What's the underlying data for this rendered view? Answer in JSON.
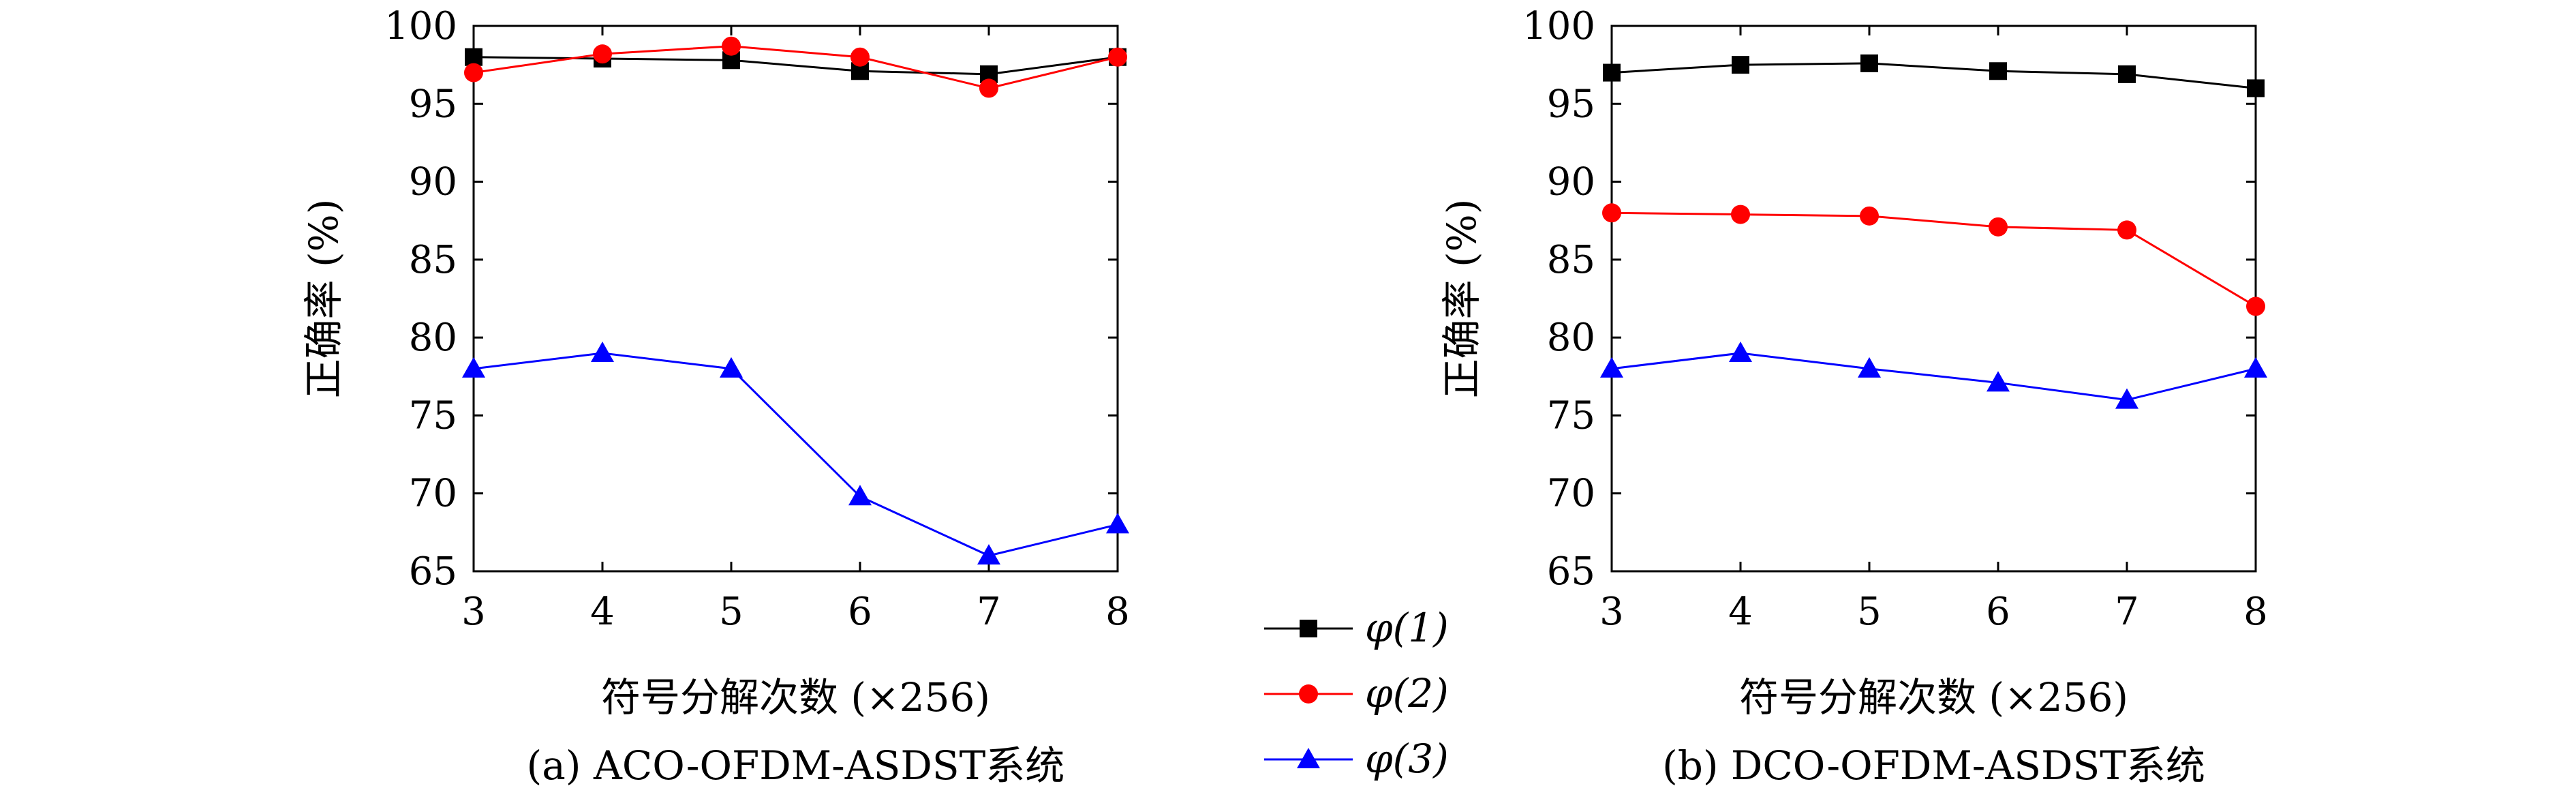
{
  "chart_data": [
    {
      "type": "line",
      "caption": "(a) ACO-OFDM-ASDST系统",
      "xlabel": "符号分解次数 (×256)",
      "ylabel": "正确率 (%)",
      "x": [
        3,
        4,
        5,
        6,
        7,
        8
      ],
      "xlim": [
        3,
        8
      ],
      "ylim": [
        65,
        100
      ],
      "xticks": [
        "3",
        "4",
        "5",
        "6",
        "7",
        "8"
      ],
      "yticks": [
        "65",
        "70",
        "75",
        "80",
        "85",
        "90",
        "95",
        "100"
      ],
      "grid": false,
      "series": [
        {
          "name": "φ(1)",
          "color": "#000000",
          "marker": "square",
          "values": [
            98.0,
            97.9,
            97.8,
            97.1,
            96.9,
            98.0
          ]
        },
        {
          "name": "φ(2)",
          "color": "#ff0000",
          "marker": "circle",
          "values": [
            97.0,
            98.2,
            98.7,
            98.0,
            96.0,
            98.0
          ]
        },
        {
          "name": "φ(3)",
          "color": "#0000ff",
          "marker": "triangle",
          "values": [
            78.0,
            79.0,
            78.0,
            69.8,
            66.0,
            68.0
          ]
        }
      ]
    },
    {
      "type": "line",
      "caption": "(b) DCO-OFDM-ASDST系统",
      "xlabel": "符号分解次数 (×256)",
      "ylabel": "正确率 (%)",
      "x": [
        3,
        4,
        5,
        6,
        7,
        8
      ],
      "xlim": [
        3,
        8
      ],
      "ylim": [
        65,
        100
      ],
      "xticks": [
        "3",
        "4",
        "5",
        "6",
        "7",
        "8"
      ],
      "yticks": [
        "65",
        "70",
        "75",
        "80",
        "85",
        "90",
        "95",
        "100"
      ],
      "grid": false,
      "series": [
        {
          "name": "φ(1)",
          "color": "#000000",
          "marker": "square",
          "values": [
            97.0,
            97.5,
            97.6,
            97.1,
            96.9,
            96.0
          ]
        },
        {
          "name": "φ(2)",
          "color": "#ff0000",
          "marker": "circle",
          "values": [
            88.0,
            87.9,
            87.8,
            87.1,
            86.9,
            82.0
          ]
        },
        {
          "name": "φ(3)",
          "color": "#0000ff",
          "marker": "triangle",
          "values": [
            78.0,
            79.0,
            78.0,
            77.1,
            76.0,
            78.0
          ]
        }
      ]
    }
  ],
  "legend": {
    "placement": "center",
    "entries": [
      {
        "label": "φ(1)",
        "color": "#000000",
        "marker": "square"
      },
      {
        "label": "φ(2)",
        "color": "#ff0000",
        "marker": "circle"
      },
      {
        "label": "φ(3)",
        "color": "#0000ff",
        "marker": "triangle"
      }
    ]
  }
}
